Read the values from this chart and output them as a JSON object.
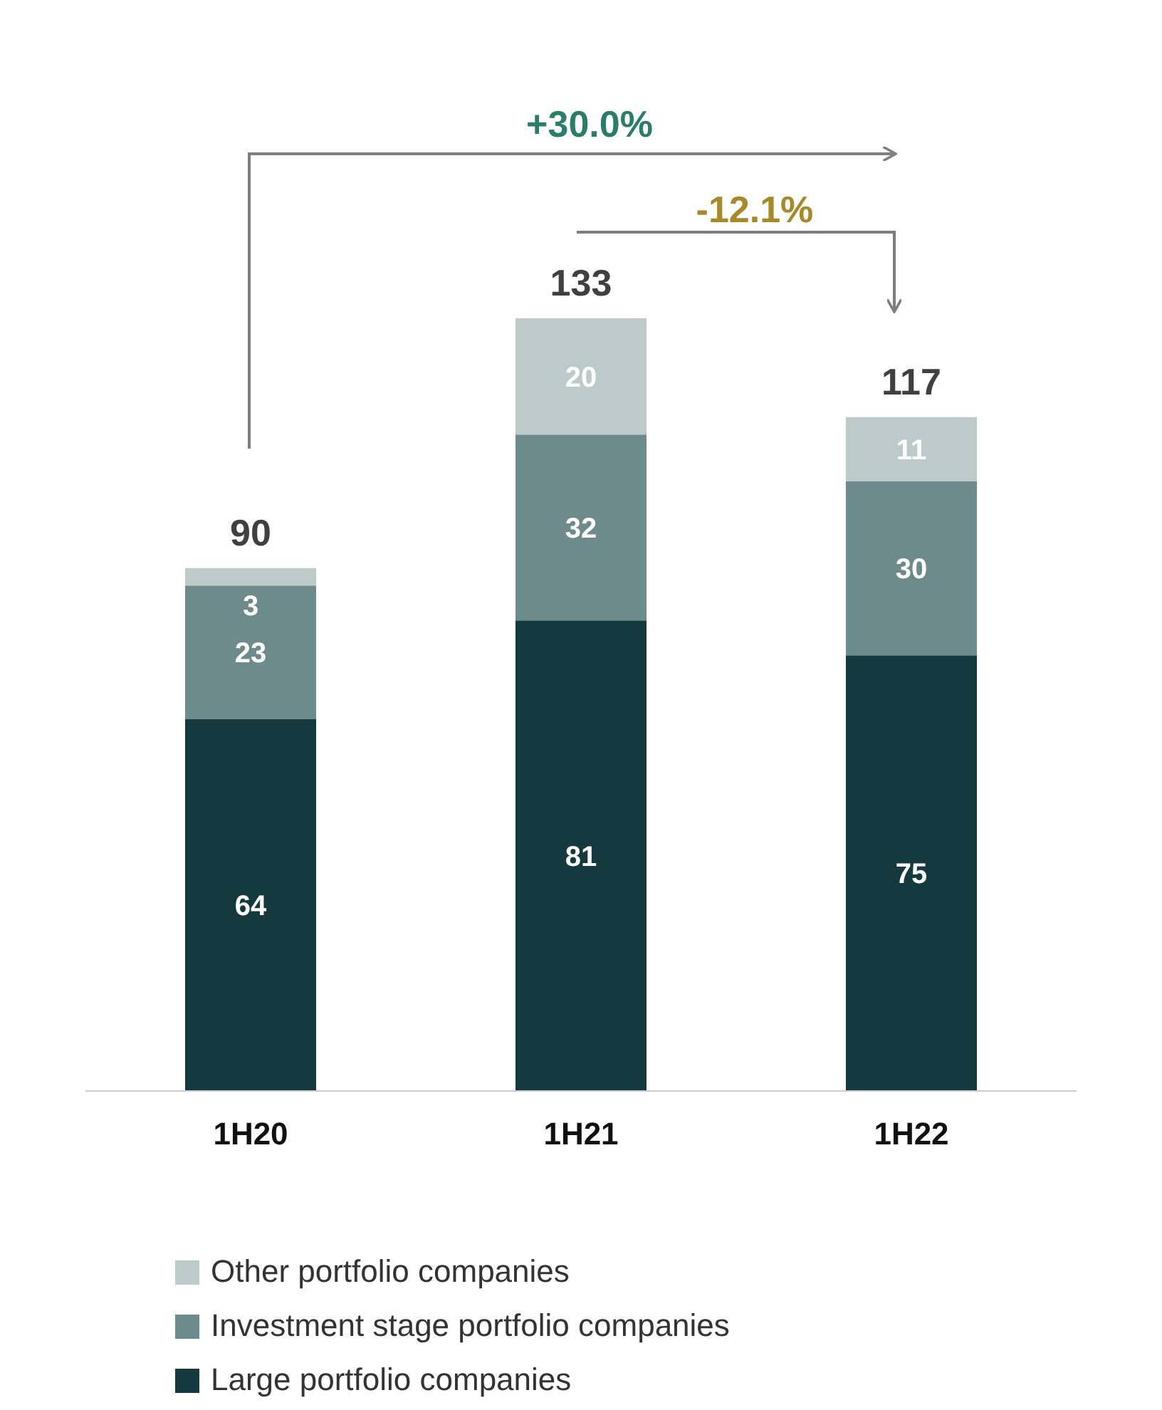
{
  "chart_data": {
    "type": "bar",
    "stacked": true,
    "data_labels": true,
    "legend": "bottom",
    "categories": [
      "1H20",
      "1H21",
      "1H22"
    ],
    "series": [
      {
        "name": "Large portfolio companies",
        "color": "#143a40",
        "values": [
          64,
          81,
          75
        ]
      },
      {
        "name": "Investment stage portfolio companies",
        "color": "#6e8b8b",
        "values": [
          23,
          32,
          30
        ]
      },
      {
        "name": "Other portfolio companies",
        "color": "#bccbc9",
        "values": [
          3,
          20,
          11
        ]
      }
    ],
    "totals": [
      "90",
      "133",
      "117"
    ],
    "annotations": [
      "+30.0%",
      "-12.1%"
    ]
  }
}
